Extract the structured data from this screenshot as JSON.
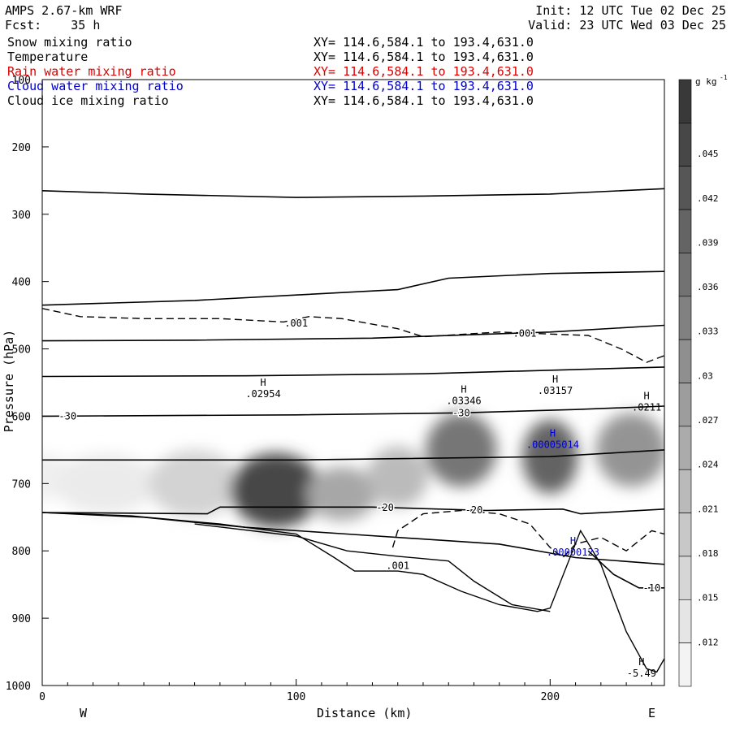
{
  "header": {
    "model": "AMPS 2.67-km WRF",
    "fcst_label": "Fcst:",
    "fcst_value": "35 h",
    "init": "Init: 12 UTC Tue 02 Dec 25",
    "valid": "Valid: 23 UTC Wed 03 Dec 25"
  },
  "fields": [
    {
      "name": "Snow mixing ratio",
      "xy": "XY= 114.6,584.1 to 193.4,631.0",
      "color": "#000000"
    },
    {
      "name": "Temperature",
      "xy": "XY= 114.6,584.1 to 193.4,631.0",
      "color": "#000000"
    },
    {
      "name": "Rain water mixing ratio",
      "xy": "XY= 114.6,584.1 to 193.4,631.0",
      "color": "#dd0000"
    },
    {
      "name": "Cloud water mixing ratio",
      "xy": "XY= 114.6,584.1 to 193.4,631.0",
      "color": "#0000cc"
    },
    {
      "name": "Cloud ice mixing ratio",
      "xy": "XY= 114.6,584.1 to 193.4,631.0",
      "color": "#000000"
    }
  ],
  "chart_data": {
    "type": "cross-section",
    "xlabel": "Distance (km)",
    "ylabel": "Pressure (hPa)",
    "xlim": [
      0,
      245
    ],
    "ylim": [
      100,
      1000
    ],
    "x_ticks": [
      "0",
      "100",
      "200"
    ],
    "x_tick_values": [
      0,
      100,
      200
    ],
    "y_ticks": [
      "100",
      "200",
      "300",
      "400",
      "500",
      "600",
      "700",
      "800",
      "900",
      "1000"
    ],
    "y_tick_values": [
      100,
      200,
      300,
      400,
      500,
      600,
      700,
      800,
      900,
      1000
    ],
    "west_label": "W",
    "east_label": "E",
    "colorbar": {
      "unit": "g kg",
      "unit_exp": "-1",
      "ticks": [
        ".045",
        ".042",
        ".039",
        ".036",
        ".033",
        ".03",
        ".027",
        ".024",
        ".021",
        ".018",
        ".015",
        ".012"
      ],
      "tick_values": [
        0.045,
        0.042,
        0.039,
        0.036,
        0.033,
        0.03,
        0.027,
        0.024,
        0.021,
        0.018,
        0.015,
        0.012
      ],
      "min": 0.009,
      "max": 0.05,
      "bins": 14
    },
    "snow_blobs": [
      {
        "x": 0,
        "p": 690,
        "rx": 12,
        "rp": 35,
        "v": 0.011
      },
      {
        "x": 25,
        "p": 700,
        "rx": 20,
        "rp": 45,
        "v": 0.012
      },
      {
        "x": 60,
        "p": 700,
        "rx": 18,
        "rp": 50,
        "v": 0.017
      },
      {
        "x": 92,
        "p": 710,
        "rx": 18,
        "rp": 55,
        "v": 0.046
      },
      {
        "x": 118,
        "p": 715,
        "rx": 14,
        "rp": 40,
        "v": 0.026
      },
      {
        "x": 140,
        "p": 690,
        "rx": 12,
        "rp": 45,
        "v": 0.022
      },
      {
        "x": 165,
        "p": 650,
        "rx": 14,
        "rp": 55,
        "v": 0.036
      },
      {
        "x": 200,
        "p": 660,
        "rx": 11,
        "rp": 55,
        "v": 0.04
      },
      {
        "x": 232,
        "p": 650,
        "rx": 14,
        "rp": 55,
        "v": 0.03
      }
    ],
    "temperature_isotherms": [
      {
        "label": "",
        "points": [
          [
            0,
            265
          ],
          [
            40,
            270
          ],
          [
            100,
            275
          ],
          [
            150,
            273
          ],
          [
            200,
            270
          ],
          [
            245,
            262
          ]
        ]
      },
      {
        "label": "",
        "points": [
          [
            0,
            435
          ],
          [
            60,
            428
          ],
          [
            100,
            420
          ],
          [
            140,
            412
          ],
          [
            160,
            395
          ],
          [
            200,
            388
          ],
          [
            245,
            385
          ]
        ]
      },
      {
        "label": "",
        "points": [
          [
            0,
            488
          ],
          [
            60,
            487
          ],
          [
            130,
            484
          ],
          [
            200,
            475
          ],
          [
            245,
            465
          ]
        ]
      },
      {
        "label": "",
        "points": [
          [
            0,
            541
          ],
          [
            80,
            540
          ],
          [
            150,
            537
          ],
          [
            245,
            527
          ]
        ]
      },
      {
        "label": "-30",
        "points": [
          [
            0,
            600
          ],
          [
            100,
            598
          ],
          [
            165,
            595
          ],
          [
            210,
            590
          ],
          [
            245,
            585
          ]
        ]
      },
      {
        "label": "",
        "points": [
          [
            0,
            665
          ],
          [
            100,
            665
          ],
          [
            200,
            660
          ],
          [
            245,
            650
          ]
        ]
      },
      {
        "label": "-20",
        "points": [
          [
            0,
            743
          ],
          [
            65,
            745
          ],
          [
            70,
            735
          ],
          [
            130,
            735
          ],
          [
            175,
            740
          ],
          [
            205,
            738
          ],
          [
            212,
            745
          ],
          [
            245,
            738
          ]
        ]
      },
      {
        "label": "",
        "points": [
          [
            0,
            743
          ],
          [
            40,
            750
          ],
          [
            80,
            765
          ],
          [
            120,
            775
          ],
          [
            180,
            790
          ],
          [
            210,
            810
          ],
          [
            245,
            820
          ]
        ]
      },
      {
        "label": "-10",
        "points": [
          [
            215,
            800
          ],
          [
            225,
            835
          ],
          [
            235,
            855
          ],
          [
            245,
            855
          ]
        ]
      }
    ],
    "terrain_lines": [
      {
        "points": [
          [
            0,
            743
          ],
          [
            35,
            748
          ],
          [
            70,
            760
          ],
          [
            100,
            775
          ],
          [
            115,
            810
          ],
          [
            123,
            830
          ],
          [
            140,
            830
          ],
          [
            150,
            835
          ],
          [
            165,
            860
          ],
          [
            180,
            880
          ],
          [
            195,
            890
          ],
          [
            200,
            885
          ],
          [
            212,
            770
          ],
          [
            220,
            820
          ],
          [
            230,
            920
          ],
          [
            238,
            975
          ],
          [
            242,
            980
          ],
          [
            245,
            960
          ]
        ]
      },
      {
        "points": [
          [
            60,
            760
          ],
          [
            100,
            778
          ],
          [
            120,
            800
          ],
          [
            140,
            808
          ],
          [
            160,
            815
          ],
          [
            170,
            845
          ],
          [
            185,
            880
          ],
          [
            200,
            890
          ]
        ]
      }
    ],
    "cloud_ice_dashed": [
      {
        "label": ".001",
        "points": [
          [
            0,
            440
          ],
          [
            15,
            452
          ],
          [
            40,
            455
          ],
          [
            70,
            455
          ],
          [
            95,
            460
          ],
          [
            105,
            452
          ],
          [
            118,
            455
          ],
          [
            140,
            470
          ],
          [
            150,
            482
          ],
          [
            180,
            475
          ],
          [
            200,
            478
          ],
          [
            215,
            480
          ],
          [
            228,
            500
          ],
          [
            238,
            520
          ],
          [
            245,
            510
          ]
        ]
      },
      {
        "label": ".001",
        "points": [
          [
            138,
            795
          ],
          [
            140,
            770
          ],
          [
            150,
            745
          ],
          [
            165,
            740
          ],
          [
            180,
            745
          ],
          [
            192,
            760
          ],
          [
            200,
            795
          ],
          [
            205,
            810
          ],
          [
            210,
            790
          ],
          [
            220,
            780
          ],
          [
            230,
            800
          ],
          [
            240,
            770
          ],
          [
            245,
            775
          ]
        ]
      }
    ],
    "extrema_labels": [
      {
        "mark": "H",
        "value": ".02954",
        "color": "#000000",
        "x": 87,
        "p": 555
      },
      {
        "mark": "H",
        "value": ".03346",
        "color": "#000000",
        "x": 166,
        "p": 565
      },
      {
        "mark": "H",
        "value": ".03157",
        "color": "#000000",
        "x": 202,
        "p": 550
      },
      {
        "mark": "H",
        "value": ".0211",
        "color": "#000000",
        "x": 238,
        "p": 575
      },
      {
        "mark": "H",
        "value": ".00005014",
        "color": "#0000cc",
        "x": 201,
        "p": 630
      },
      {
        "mark": "H",
        "value": ".00000123",
        "color": "#0000cc",
        "x": 209,
        "p": 790
      },
      {
        "mark": "H",
        "value": "-5.49",
        "color": "#000000",
        "x": 236,
        "p": 970
      }
    ]
  }
}
